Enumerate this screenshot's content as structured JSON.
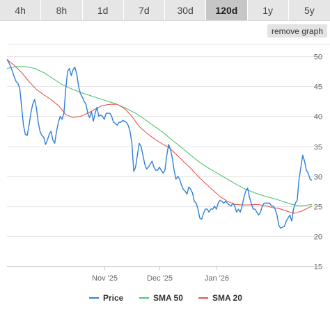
{
  "tabs": [
    {
      "label": "4h",
      "active": false
    },
    {
      "label": "8h",
      "active": false
    },
    {
      "label": "1d",
      "active": false
    },
    {
      "label": "7d",
      "active": false
    },
    {
      "label": "30d",
      "active": false
    },
    {
      "label": "120d",
      "active": true
    },
    {
      "label": "1y",
      "active": false
    },
    {
      "label": "5y",
      "active": false
    }
  ],
  "remove_graph_label": "remove graph",
  "colors": {
    "price": "#2f7ed8",
    "sma50": "#4cc46f",
    "sma20": "#e8554e",
    "grid": "#e6e6e6",
    "axis_text": "#666666"
  },
  "chart_data": {
    "type": "line",
    "title": "",
    "xlabel": "",
    "ylabel": "",
    "x_range": [
      "2025-09-09",
      "2026-02-22"
    ],
    "ylim": [
      15,
      52
    ],
    "y_ticks": [
      "15",
      "20",
      "25",
      "30",
      "35",
      "40",
      "45",
      "50"
    ],
    "x_ticks": [
      {
        "label": "Nov '25",
        "date": "2025-11-01"
      },
      {
        "label": "Dec '25",
        "date": "2025-12-01"
      },
      {
        "label": "Jan '26",
        "date": "2026-01-01"
      }
    ],
    "legend_position": "bottom",
    "series": [
      {
        "name": "Price",
        "color": "#2f7ed8",
        "points": [
          [
            "2025-09-09",
            49.5
          ],
          [
            "2025-09-10",
            49.0
          ],
          [
            "2025-09-11",
            48.3
          ],
          [
            "2025-09-12",
            47.5
          ],
          [
            "2025-09-13",
            46.5
          ],
          [
            "2025-09-14",
            45.8
          ],
          [
            "2025-09-15",
            45.5
          ],
          [
            "2025-09-16",
            44.6
          ],
          [
            "2025-09-17",
            41.5
          ],
          [
            "2025-09-18",
            38.5
          ],
          [
            "2025-09-19",
            37.0
          ],
          [
            "2025-09-20",
            36.8
          ],
          [
            "2025-09-21",
            38.5
          ],
          [
            "2025-09-22",
            40.5
          ],
          [
            "2025-09-23",
            42.0
          ],
          [
            "2025-09-24",
            42.8
          ],
          [
            "2025-09-25",
            41.5
          ],
          [
            "2025-09-26",
            39.0
          ],
          [
            "2025-09-27",
            37.5
          ],
          [
            "2025-09-28",
            36.8
          ],
          [
            "2025-09-29",
            36.5
          ],
          [
            "2025-09-30",
            35.3
          ],
          [
            "2025-10-01",
            36.0
          ],
          [
            "2025-10-02",
            37.0
          ],
          [
            "2025-10-03",
            37.5
          ],
          [
            "2025-10-04",
            36.0
          ],
          [
            "2025-10-05",
            35.5
          ],
          [
            "2025-10-06",
            37.5
          ],
          [
            "2025-10-07",
            39.0
          ],
          [
            "2025-10-08",
            40.0
          ],
          [
            "2025-10-09",
            39.5
          ],
          [
            "2025-10-10",
            40.5
          ],
          [
            "2025-10-11",
            44.5
          ],
          [
            "2025-10-12",
            47.5
          ],
          [
            "2025-10-13",
            48.0
          ],
          [
            "2025-10-14",
            46.8
          ],
          [
            "2025-10-15",
            47.8
          ],
          [
            "2025-10-16",
            48.2
          ],
          [
            "2025-10-17",
            47.0
          ],
          [
            "2025-10-18",
            45.0
          ],
          [
            "2025-10-19",
            43.8
          ],
          [
            "2025-10-20",
            43.2
          ],
          [
            "2025-10-21",
            42.5
          ],
          [
            "2025-10-22",
            42.0
          ],
          [
            "2025-10-23",
            40.5
          ],
          [
            "2025-10-24",
            39.8
          ],
          [
            "2025-10-25",
            40.8
          ],
          [
            "2025-10-26",
            39.2
          ],
          [
            "2025-10-27",
            40.5
          ],
          [
            "2025-10-28",
            41.5
          ],
          [
            "2025-10-29",
            40.0
          ],
          [
            "2025-10-30",
            40.2
          ],
          [
            "2025-10-31",
            40.0
          ],
          [
            "2025-11-01",
            39.5
          ],
          [
            "2025-11-02",
            40.5
          ],
          [
            "2025-11-03",
            40.5
          ],
          [
            "2025-11-04",
            40.5
          ],
          [
            "2025-11-05",
            40.0
          ],
          [
            "2025-11-06",
            39.0
          ],
          [
            "2025-11-07",
            38.8
          ],
          [
            "2025-11-08",
            38.5
          ],
          [
            "2025-11-09",
            39.0
          ],
          [
            "2025-11-10",
            39.0
          ],
          [
            "2025-11-11",
            39.3
          ],
          [
            "2025-11-12",
            39.2
          ],
          [
            "2025-11-13",
            39.0
          ],
          [
            "2025-11-14",
            38.5
          ],
          [
            "2025-11-15",
            37.5
          ],
          [
            "2025-11-16",
            35.5
          ],
          [
            "2025-11-17",
            30.8
          ],
          [
            "2025-11-18",
            31.5
          ],
          [
            "2025-11-19",
            33.5
          ],
          [
            "2025-11-20",
            35.5
          ],
          [
            "2025-11-21",
            35.0
          ],
          [
            "2025-11-22",
            33.5
          ],
          [
            "2025-11-23",
            32.0
          ],
          [
            "2025-11-24",
            31.2
          ],
          [
            "2025-11-25",
            31.5
          ],
          [
            "2025-11-26",
            32.0
          ],
          [
            "2025-11-27",
            32.5
          ],
          [
            "2025-11-28",
            31.5
          ],
          [
            "2025-11-29",
            31.0
          ],
          [
            "2025-11-30",
            31.0
          ],
          [
            "2025-12-01",
            31.5
          ],
          [
            "2025-12-02",
            31.0
          ],
          [
            "2025-12-03",
            30.5
          ],
          [
            "2025-12-04",
            31.0
          ],
          [
            "2025-12-05",
            33.5
          ],
          [
            "2025-12-06",
            35.3
          ],
          [
            "2025-12-07",
            34.5
          ],
          [
            "2025-12-08",
            33.0
          ],
          [
            "2025-12-09",
            31.0
          ],
          [
            "2025-12-10",
            29.5
          ],
          [
            "2025-12-11",
            30.0
          ],
          [
            "2025-12-12",
            29.5
          ],
          [
            "2025-12-13",
            28.5
          ],
          [
            "2025-12-14",
            27.8
          ],
          [
            "2025-12-15",
            27.5
          ],
          [
            "2025-12-16",
            27.0
          ],
          [
            "2025-12-17",
            28.2
          ],
          [
            "2025-12-18",
            27.8
          ],
          [
            "2025-12-19",
            27.2
          ],
          [
            "2025-12-20",
            25.8
          ],
          [
            "2025-12-21",
            25.5
          ],
          [
            "2025-12-22",
            24.5
          ],
          [
            "2025-12-23",
            23.0
          ],
          [
            "2025-12-24",
            22.8
          ],
          [
            "2025-12-25",
            23.8
          ],
          [
            "2025-12-26",
            24.5
          ],
          [
            "2025-12-27",
            24.5
          ],
          [
            "2025-12-28",
            24.0
          ],
          [
            "2025-12-29",
            24.5
          ],
          [
            "2025-12-30",
            24.5
          ],
          [
            "2025-12-31",
            25.0
          ],
          [
            "2026-01-01",
            24.5
          ],
          [
            "2026-01-02",
            25.5
          ],
          [
            "2026-01-03",
            26.0
          ],
          [
            "2026-01-04",
            25.8
          ],
          [
            "2026-01-05",
            25.5
          ],
          [
            "2026-01-06",
            25.8
          ],
          [
            "2026-01-07",
            25.5
          ],
          [
            "2026-01-08",
            25.2
          ],
          [
            "2026-01-09",
            25.0
          ],
          [
            "2026-01-10",
            25.5
          ],
          [
            "2026-01-11",
            25.0
          ],
          [
            "2026-01-12",
            24.0
          ],
          [
            "2026-01-13",
            24.5
          ],
          [
            "2026-01-14",
            24.0
          ],
          [
            "2026-01-15",
            25.0
          ],
          [
            "2026-01-16",
            26.5
          ],
          [
            "2026-01-17",
            27.5
          ],
          [
            "2026-01-18",
            28.0
          ],
          [
            "2026-01-19",
            26.5
          ],
          [
            "2026-01-20",
            25.5
          ],
          [
            "2026-01-21",
            24.5
          ],
          [
            "2026-01-22",
            24.5
          ],
          [
            "2026-01-23",
            24.0
          ],
          [
            "2026-01-24",
            23.5
          ],
          [
            "2026-01-25",
            24.0
          ],
          [
            "2026-01-26",
            25.0
          ],
          [
            "2026-01-27",
            25.5
          ],
          [
            "2026-01-28",
            25.5
          ],
          [
            "2026-01-29",
            25.5
          ],
          [
            "2026-01-30",
            25.5
          ],
          [
            "2026-01-31",
            25.0
          ],
          [
            "2026-02-01",
            25.0
          ],
          [
            "2026-02-02",
            24.5
          ],
          [
            "2026-02-03",
            23.5
          ],
          [
            "2026-02-04",
            21.8
          ],
          [
            "2026-02-05",
            21.3
          ],
          [
            "2026-02-06",
            21.5
          ],
          [
            "2026-02-07",
            21.6
          ],
          [
            "2026-02-08",
            22.5
          ],
          [
            "2026-02-09",
            23.0
          ],
          [
            "2026-02-10",
            23.5
          ],
          [
            "2026-02-11",
            22.5
          ],
          [
            "2026-02-12",
            24.5
          ],
          [
            "2026-02-13",
            25.5
          ],
          [
            "2026-02-14",
            26.0
          ],
          [
            "2026-02-15",
            29.5
          ],
          [
            "2026-02-16",
            31.5
          ],
          [
            "2026-02-17",
            33.5
          ],
          [
            "2026-02-18",
            32.5
          ],
          [
            "2026-02-19",
            31.0
          ],
          [
            "2026-02-20",
            30.5
          ],
          [
            "2026-02-21",
            29.5
          ],
          [
            "2026-02-22",
            29.3
          ]
        ]
      },
      {
        "name": "SMA 50",
        "color": "#4cc46f",
        "points": [
          [
            "2025-09-09",
            48.0
          ],
          [
            "2025-09-14",
            48.3
          ],
          [
            "2025-09-19",
            48.3
          ],
          [
            "2025-09-24",
            48.0
          ],
          [
            "2025-09-29",
            47.3
          ],
          [
            "2025-10-04",
            46.3
          ],
          [
            "2025-10-09",
            45.3
          ],
          [
            "2025-10-14",
            44.6
          ],
          [
            "2025-10-19",
            44.0
          ],
          [
            "2025-10-24",
            43.5
          ],
          [
            "2025-10-29",
            43.0
          ],
          [
            "2025-11-03",
            42.5
          ],
          [
            "2025-11-08",
            42.0
          ],
          [
            "2025-11-13",
            41.3
          ],
          [
            "2025-11-18",
            40.5
          ],
          [
            "2025-11-23",
            39.5
          ],
          [
            "2025-11-28",
            38.4
          ],
          [
            "2025-12-03",
            37.3
          ],
          [
            "2025-12-08",
            36.0
          ],
          [
            "2025-12-13",
            34.8
          ],
          [
            "2025-12-18",
            33.5
          ],
          [
            "2025-12-23",
            32.3
          ],
          [
            "2025-12-28",
            31.3
          ],
          [
            "2026-01-02",
            30.4
          ],
          [
            "2026-01-07",
            29.5
          ],
          [
            "2026-01-12",
            28.6
          ],
          [
            "2026-01-17",
            27.8
          ],
          [
            "2026-01-22",
            27.2
          ],
          [
            "2026-01-27",
            26.7
          ],
          [
            "2026-02-01",
            26.3
          ],
          [
            "2026-02-06",
            25.8
          ],
          [
            "2026-02-11",
            25.3
          ],
          [
            "2026-02-16",
            25.0
          ],
          [
            "2026-02-22",
            25.3
          ]
        ]
      },
      {
        "name": "SMA 20",
        "color": "#e8554e",
        "points": [
          [
            "2025-09-09",
            49.5
          ],
          [
            "2025-09-13",
            48.5
          ],
          [
            "2025-09-17",
            47.3
          ],
          [
            "2025-09-21",
            45.8
          ],
          [
            "2025-09-25",
            44.5
          ],
          [
            "2025-09-29",
            43.6
          ],
          [
            "2025-10-03",
            42.8
          ],
          [
            "2025-10-07",
            41.8
          ],
          [
            "2025-10-11",
            40.3
          ],
          [
            "2025-10-15",
            39.8
          ],
          [
            "2025-10-19",
            40.0
          ],
          [
            "2025-10-23",
            40.5
          ],
          [
            "2025-10-27",
            41.2
          ],
          [
            "2025-10-31",
            41.8
          ],
          [
            "2025-11-04",
            42.0
          ],
          [
            "2025-11-08",
            42.0
          ],
          [
            "2025-11-12",
            41.3
          ],
          [
            "2025-11-16",
            40.0
          ],
          [
            "2025-11-20",
            38.3
          ],
          [
            "2025-11-24",
            37.2
          ],
          [
            "2025-11-28",
            36.3
          ],
          [
            "2025-12-02",
            35.5
          ],
          [
            "2025-12-06",
            34.8
          ],
          [
            "2025-12-10",
            33.7
          ],
          [
            "2025-12-14",
            32.5
          ],
          [
            "2025-12-18",
            31.3
          ],
          [
            "2025-12-22",
            30.0
          ],
          [
            "2025-12-26",
            28.8
          ],
          [
            "2025-12-30",
            27.7
          ],
          [
            "2026-01-03",
            26.6
          ],
          [
            "2026-01-07",
            25.8
          ],
          [
            "2026-01-11",
            25.3
          ],
          [
            "2026-01-15",
            25.2
          ],
          [
            "2026-01-19",
            25.2
          ],
          [
            "2026-01-23",
            25.3
          ],
          [
            "2026-01-27",
            25.1
          ],
          [
            "2026-01-31",
            24.8
          ],
          [
            "2026-02-04",
            24.6
          ],
          [
            "2026-02-08",
            24.2
          ],
          [
            "2026-02-12",
            23.8
          ],
          [
            "2026-02-16",
            24.1
          ],
          [
            "2026-02-22",
            25.0
          ]
        ]
      }
    ]
  }
}
